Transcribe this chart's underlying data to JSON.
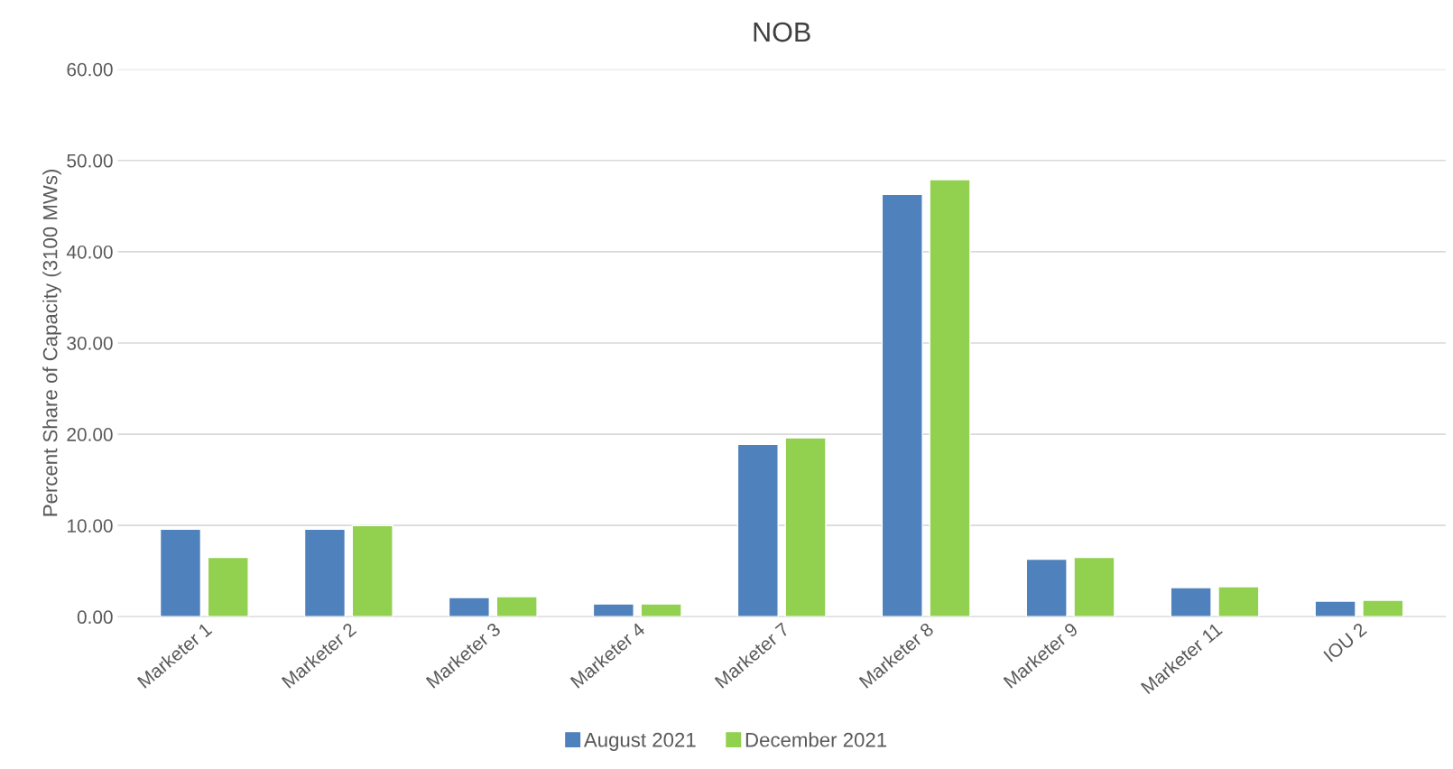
{
  "chart_data": {
    "type": "bar",
    "title": "NOB",
    "ylabel": "Percent Share of Capacity (3100 MWs)",
    "categories": [
      "Marketer 1",
      "Marketer 2",
      "Marketer 3",
      "Marketer 4",
      "Marketer 7",
      "Marketer 8",
      "Marketer 9",
      "Marketer 11",
      "IOU 2"
    ],
    "series": [
      {
        "name": "August 2021",
        "color": "#4f81bd",
        "values": [
          9.6,
          9.6,
          2.1,
          1.4,
          18.9,
          46.3,
          6.3,
          3.2,
          1.7
        ]
      },
      {
        "name": "December 2021",
        "color": "#92d050",
        "values": [
          6.5,
          10.0,
          2.2,
          1.4,
          19.6,
          47.9,
          6.5,
          3.3,
          1.8
        ]
      }
    ],
    "ylim": [
      0,
      60
    ],
    "yticks": [
      {
        "value": 0,
        "label": "0.00"
      },
      {
        "value": 10,
        "label": "10.00"
      },
      {
        "value": 20,
        "label": "20.00"
      },
      {
        "value": 30,
        "label": "30.00"
      },
      {
        "value": 40,
        "label": "40.00"
      },
      {
        "value": 50,
        "label": "50.00"
      },
      {
        "value": 60,
        "label": "60.00"
      }
    ],
    "grid": "y",
    "legend": "bottom"
  }
}
